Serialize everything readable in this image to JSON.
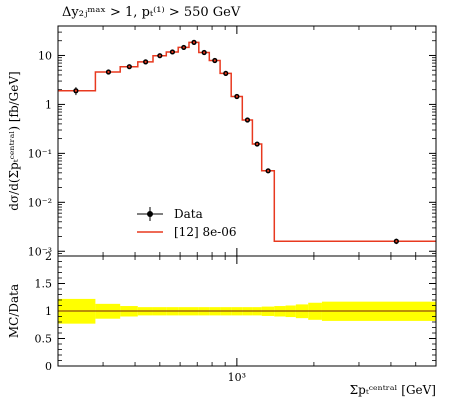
{
  "chart_data": [
    {
      "type": "line",
      "title": "Δy₂ⱼᵐᵃˣ > 1, pₜ⁽¹⁾ > 550 GeV",
      "ylabel": "dσ/d(Σpₜᶜᵉⁿᵗʳᵃˡ) [fb/GeV]",
      "xlabel": "",
      "xscale": "log",
      "yscale": "log",
      "xlim": [
        200,
        6000
      ],
      "ylim": [
        0.0008,
        40
      ],
      "y_tick_labels": [
        "10",
        "1",
        "10⁻¹",
        "10⁻²",
        "10⁻³"
      ],
      "y_tick_values": [
        10,
        1,
        0.1,
        0.01,
        0.001
      ],
      "legend": {
        "position": "lower-left",
        "entries": [
          {
            "label": "Data",
            "style": "marker"
          },
          {
            "label": "[12] 8e-06",
            "style": "line"
          }
        ]
      },
      "colors": {
        "mc": "#e8391f",
        "data": "#000000",
        "band": "#ffff00"
      },
      "bins": [
        200,
        280,
        350,
        410,
        470,
        530,
        590,
        650,
        710,
        780,
        860,
        950,
        1050,
        1150,
        1250,
        1400,
        1550,
        1700,
        1900,
        2150,
        6000
      ],
      "data_points": {
        "x": [
          235,
          315,
          380,
          440,
          500,
          560,
          620,
          680,
          745,
          820,
          905,
          1000,
          1100,
          1200,
          1325,
          1475,
          1625,
          1800,
          2025,
          4200
        ],
        "y": [
          1.9,
          4.6,
          5.9,
          7.4,
          9.9,
          11.8,
          14.6,
          18.5,
          11.5,
          7.9,
          4.3,
          1.45,
          0.48,
          0.155,
          0.044,
          null,
          null,
          null,
          null,
          0.0016
        ],
        "yerr": [
          0.35,
          0.3,
          0.3,
          0.3,
          0.3,
          0.4,
          0.5,
          0.8,
          0.5,
          0.4,
          0.2,
          0.08,
          0.03,
          0.012,
          0.004,
          null,
          null,
          null,
          null,
          0.0002
        ]
      },
      "mc_values": [
        1.9,
        4.6,
        5.9,
        7.4,
        9.9,
        11.8,
        14.6,
        18.5,
        11.5,
        7.9,
        4.3,
        1.45,
        0.48,
        0.155,
        0.044,
        0.0016,
        0.0016,
        0.0016,
        0.0016,
        0.0016
      ]
    },
    {
      "type": "area",
      "ylabel": "MC/Data",
      "xlabel": "Σpₜᶜᵉⁿᵗʳᵃˡ [GeV]",
      "xscale": "log",
      "xlim": [
        200,
        6000
      ],
      "ylim": [
        0,
        2
      ],
      "y_tick_labels": [
        "0",
        "0.5",
        "1",
        "1.5",
        "2"
      ],
      "y_tick_values": [
        0,
        0.5,
        1,
        1.5,
        2
      ],
      "x_tick_labels": [
        "10³"
      ],
      "x_tick_values": [
        1000
      ],
      "ratio": 1.0,
      "band_bins": [
        200,
        280,
        350,
        410,
        470,
        530,
        590,
        650,
        710,
        780,
        860,
        950,
        1050,
        1150,
        1250,
        1400,
        1550,
        1700,
        1900,
        2150,
        6000
      ],
      "band_lower": [
        0.77,
        0.86,
        0.9,
        0.92,
        0.92,
        0.92,
        0.92,
        0.92,
        0.92,
        0.92,
        0.92,
        0.92,
        0.92,
        0.92,
        0.91,
        0.9,
        0.89,
        0.87,
        0.84,
        0.82
      ],
      "band_upper": [
        1.22,
        1.13,
        1.09,
        1.07,
        1.07,
        1.07,
        1.07,
        1.07,
        1.07,
        1.07,
        1.07,
        1.07,
        1.07,
        1.07,
        1.08,
        1.09,
        1.1,
        1.12,
        1.15,
        1.17
      ]
    }
  ]
}
